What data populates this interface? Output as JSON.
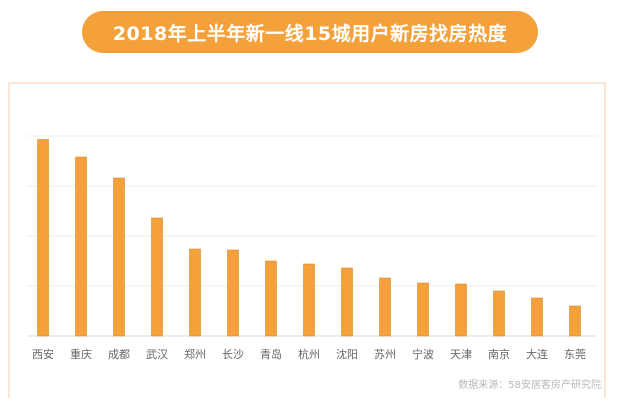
{
  "chart_data": {
    "type": "bar",
    "title": "2018年上半年新一线15城用户新房找房热度",
    "categories": [
      "西安",
      "重庆",
      "成都",
      "武汉",
      "郑州",
      "长沙",
      "青岛",
      "杭州",
      "沈阳",
      "苏州",
      "宁波",
      "天津",
      "南京",
      "大连",
      "东莞"
    ],
    "values": [
      3.93,
      3.58,
      3.16,
      2.36,
      1.74,
      1.72,
      1.5,
      1.44,
      1.36,
      1.16,
      1.06,
      1.04,
      0.9,
      0.76,
      0.6
    ],
    "ylim": [
      0,
      4
    ],
    "grid": true,
    "y_tick_labels_shown": false,
    "bar_color": "#F4A13B",
    "source": "数据来源：58安居客房产研究院"
  }
}
